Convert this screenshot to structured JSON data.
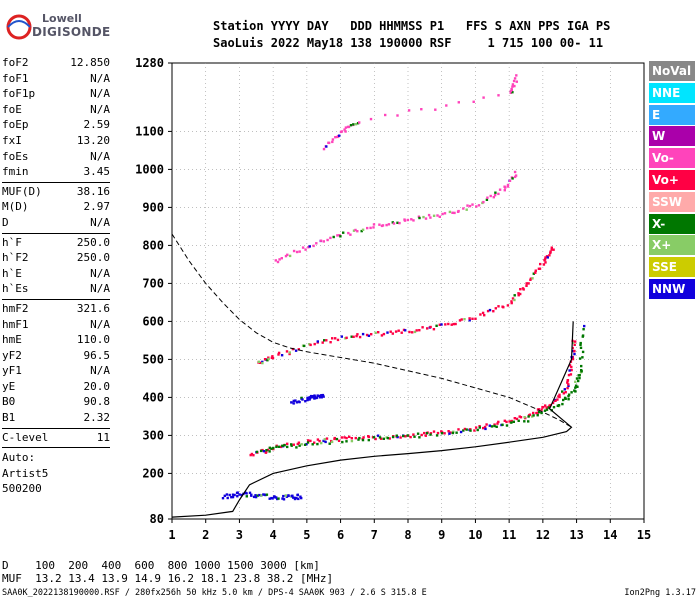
{
  "logo": {
    "line1": "Lowell",
    "line2": "DIGISONDE"
  },
  "header": {
    "row1": "Station YYYY DAY   DDD HHMMSS P1   FFS S AXN PPS IGA PS",
    "row2": "SaoLuis 2022 May18 138 190000 RSF     1 715 100 00- 11"
  },
  "params": [
    [
      {
        "k": "foF2",
        "v": "12.850"
      },
      {
        "k": "foF1",
        "v": "N/A"
      },
      {
        "k": "foF1p",
        "v": "N/A"
      },
      {
        "k": "foE",
        "v": "N/A"
      },
      {
        "k": "foEp",
        "v": "2.59"
      },
      {
        "k": "fxI",
        "v": "13.20"
      },
      {
        "k": "foEs",
        "v": "N/A"
      },
      {
        "k": "fmin",
        "v": "3.45"
      }
    ],
    [
      {
        "k": "MUF(D)",
        "v": "38.16"
      },
      {
        "k": "M(D)",
        "v": "2.97"
      },
      {
        "k": "D",
        "v": "N/A"
      }
    ],
    [
      {
        "k": "h`F",
        "v": "250.0"
      },
      {
        "k": "h`F2",
        "v": "250.0"
      },
      {
        "k": "h`E",
        "v": "N/A"
      },
      {
        "k": "h`Es",
        "v": "N/A"
      }
    ],
    [
      {
        "k": "hmF2",
        "v": "321.6"
      },
      {
        "k": "hmF1",
        "v": "N/A"
      },
      {
        "k": "hmE",
        "v": "110.0"
      },
      {
        "k": "yF2",
        "v": "96.5"
      },
      {
        "k": "yF1",
        "v": "N/A"
      },
      {
        "k": "yE",
        "v": "20.0"
      },
      {
        "k": "B0",
        "v": "90.8"
      },
      {
        "k": "B1",
        "v": "2.32"
      }
    ],
    [
      {
        "k": "C-level",
        "v": "11"
      }
    ]
  ],
  "auto": {
    "line1": "Auto:",
    "line2": "Artist5",
    "line3": "500200"
  },
  "legend": [
    {
      "label": "NoVal",
      "color": "#888888"
    },
    {
      "label": "NNE",
      "color": "#00e5ff"
    },
    {
      "label": "E",
      "color": "#33aaff"
    },
    {
      "label": "W",
      "color": "#aa00aa"
    },
    {
      "label": "Vo-",
      "color": "#ff44bb"
    },
    {
      "label": "Vo+",
      "color": "#ff0044"
    },
    {
      "label": "SSW",
      "color": "#ffaaaa"
    },
    {
      "label": "X-",
      "color": "#007700"
    },
    {
      "label": "X+",
      "color": "#88cc66"
    },
    {
      "label": "SSE",
      "color": "#cccc00"
    },
    {
      "label": "NNW",
      "color": "#1100dd"
    }
  ],
  "footer": {
    "line1": "D    100  200  400  600  800 1000 1500 3000 [km]",
    "line2": "MUF  13.2 13.4 13.9 14.9 16.2 18.1 23.8 38.2 [MHz]",
    "line3": "SAA0K_2022138190000.RSF / 280fx256h 50 kHz 5.0 km / DPS-4 SAA0K 903 / 2.6 S 315.8 E",
    "line4": "Ion2Png 1.3.17"
  },
  "chart_data": {
    "type": "scatter",
    "xlim": [
      1,
      15
    ],
    "ylim": [
      80,
      1280
    ],
    "x_ticks": [
      1,
      2,
      3,
      4,
      5,
      6,
      7,
      8,
      9,
      10,
      11,
      12,
      13,
      14,
      15
    ],
    "y_ticks": [
      80,
      200,
      300,
      400,
      500,
      600,
      700,
      800,
      900,
      1000,
      1100,
      1280
    ],
    "grid": true,
    "traces": [
      {
        "name": "F2 O-trace",
        "color": "#ff0044",
        "points": [
          [
            3.3,
            252
          ],
          [
            4,
            270
          ],
          [
            5,
            285
          ],
          [
            6,
            293
          ],
          [
            7,
            298
          ],
          [
            8,
            303
          ],
          [
            9,
            310
          ],
          [
            10,
            322
          ],
          [
            11,
            340
          ],
          [
            11.8,
            365
          ],
          [
            12.3,
            390
          ],
          [
            12.7,
            430
          ],
          [
            12.85,
            500
          ],
          [
            12.9,
            560
          ]
        ]
      },
      {
        "name": "F2 X-trace",
        "color": "#007700",
        "points": [
          [
            3.5,
            262
          ],
          [
            4.5,
            275
          ],
          [
            6,
            290
          ],
          [
            8,
            300
          ],
          [
            10,
            318
          ],
          [
            11.5,
            345
          ],
          [
            12.4,
            380
          ],
          [
            12.9,
            420
          ],
          [
            13.1,
            480
          ],
          [
            13.15,
            600
          ]
        ]
      },
      {
        "name": "2nd hop",
        "color": "#ff0044",
        "points": [
          [
            3.5,
            490
          ],
          [
            4,
            510
          ],
          [
            5,
            540
          ],
          [
            6,
            560
          ],
          [
            7,
            570
          ],
          [
            8,
            578
          ],
          [
            9,
            590
          ],
          [
            10,
            615
          ],
          [
            11,
            650
          ],
          [
            11.5,
            700
          ],
          [
            12,
            760
          ],
          [
            12.3,
            800
          ]
        ]
      },
      {
        "name": "3rd hop",
        "color": "#ff44bb",
        "points": [
          [
            4,
            760
          ],
          [
            5,
            800
          ],
          [
            6,
            830
          ],
          [
            7,
            855
          ],
          [
            8,
            870
          ],
          [
            9,
            885
          ],
          [
            10,
            910
          ],
          [
            10.8,
            950
          ],
          [
            11.2,
            1000
          ]
        ]
      },
      {
        "name": "4th hop",
        "color": "#ff44bb",
        "points": [
          [
            5.5,
            1060
          ],
          [
            6,
            1100
          ],
          [
            6.5,
            1130
          ],
          [
            11,
            1200
          ],
          [
            11.2,
            1250
          ]
        ]
      },
      {
        "name": "Es low",
        "color": "#1100dd",
        "points": [
          [
            2.5,
            140
          ],
          [
            3,
            150
          ],
          [
            3.5,
            145
          ],
          [
            4,
            140
          ],
          [
            4.5,
            140
          ],
          [
            4.8,
            142
          ]
        ]
      },
      {
        "name": "Es mid",
        "color": "#1100dd",
        "points": [
          [
            4.5,
            390
          ],
          [
            5,
            400
          ],
          [
            5.2,
            405
          ],
          [
            5.5,
            410
          ]
        ]
      }
    ],
    "profile": {
      "name": "electron density profile",
      "color": "#000000",
      "points": [
        [
          1,
          85
        ],
        [
          2,
          90
        ],
        [
          2.8,
          100
        ],
        [
          3,
          130
        ],
        [
          3.3,
          170
        ],
        [
          4,
          200
        ],
        [
          5,
          220
        ],
        [
          6,
          235
        ],
        [
          7,
          245
        ],
        [
          8,
          252
        ],
        [
          9,
          260
        ],
        [
          10,
          270
        ],
        [
          11,
          282
        ],
        [
          12,
          295
        ],
        [
          12.7,
          310
        ],
        [
          12.85,
          321.6
        ],
        [
          12.6,
          340
        ],
        [
          12.2,
          370
        ],
        [
          12.85,
          500
        ],
        [
          12.9,
          600
        ]
      ]
    },
    "muf_curve": {
      "name": "MUF curve",
      "color": "#000000",
      "points": [
        [
          1,
          830
        ],
        [
          1.5,
          760
        ],
        [
          2,
          700
        ],
        [
          2.5,
          650
        ],
        [
          3,
          605
        ],
        [
          3.5,
          570
        ],
        [
          4,
          545
        ],
        [
          4.5,
          530
        ],
        [
          5,
          520
        ],
        [
          6,
          505
        ],
        [
          7,
          490
        ],
        [
          8,
          470
        ],
        [
          9,
          450
        ],
        [
          10,
          425
        ],
        [
          11,
          400
        ],
        [
          11.8,
          370
        ],
        [
          12.5,
          340
        ],
        [
          12.85,
          321.6
        ]
      ]
    }
  }
}
